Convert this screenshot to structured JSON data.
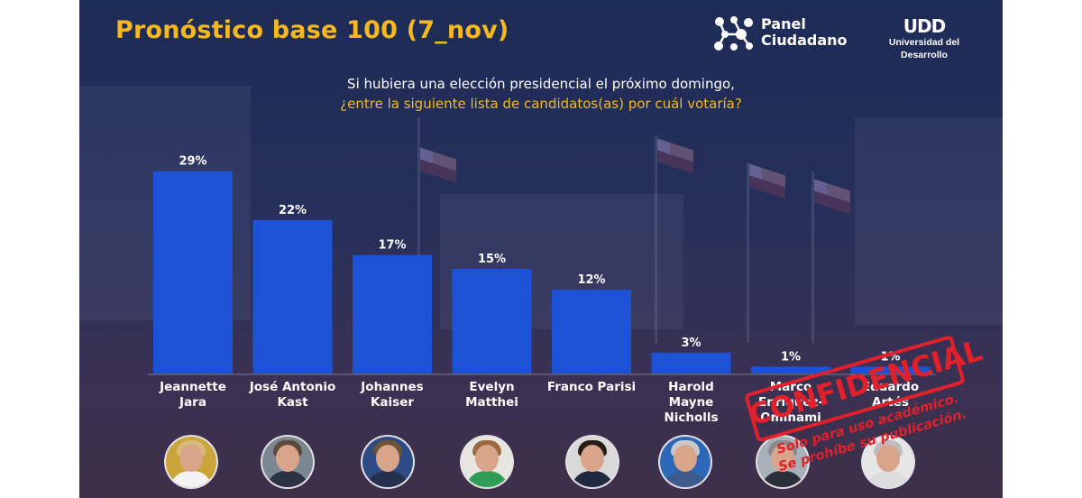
{
  "header": {
    "title": "Pronóstico base 100 (7_nov)",
    "brand_line1": "Panel",
    "brand_line2": "Ciudadano",
    "udd_mark": "UDD",
    "udd_name": "Universidad del Desarrollo"
  },
  "question": {
    "line1": "Si hubiera una elección presidencial el próximo domingo,",
    "line2": "¿entre la siguiente lista de candidatos(as) por cuál votaría?"
  },
  "chart_data": {
    "type": "bar",
    "categories": [
      [
        "Jeannette",
        "Jara"
      ],
      [
        "José Antonio",
        "Kast"
      ],
      [
        "Johannes",
        "Kaiser"
      ],
      [
        "Evelyn",
        "Matthei"
      ],
      [
        "Franco Parisi"
      ],
      [
        "Harold",
        "Mayne",
        "Nicholls"
      ],
      [
        "Marco",
        "Enríquez-",
        "Ominami"
      ],
      [
        "Eduardo",
        "Artés"
      ]
    ],
    "values": [
      29,
      22,
      17,
      15,
      12,
      3,
      1,
      1
    ],
    "value_labels": [
      "29%",
      "22%",
      "17%",
      "15%",
      "12%",
      "3%",
      "1%",
      "1%"
    ],
    "unit": "%",
    "ylim": [
      0,
      30
    ],
    "bar_color": "#1c52d6",
    "grid": false,
    "legend": "none"
  },
  "stamp": {
    "word": "CONFIDENCIAL",
    "line1": "Solo para uso académico.",
    "line2": "Se prohíbe su publicación.",
    "color": "#e0202a"
  },
  "colors": {
    "accent": "#f5b81f",
    "background": "#1d2b57"
  }
}
